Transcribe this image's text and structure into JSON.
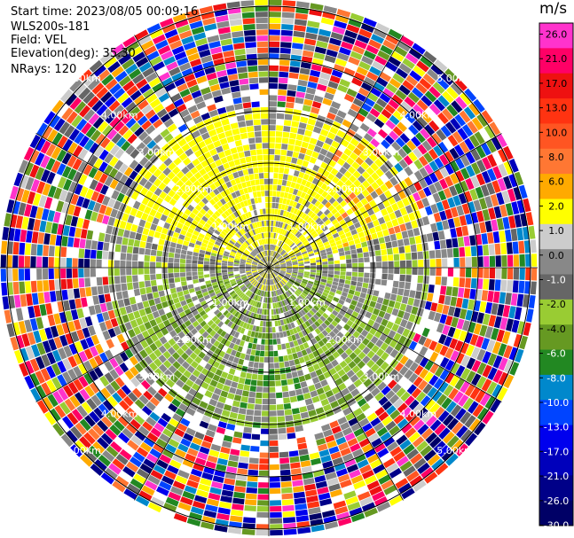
{
  "header": {
    "start_time": "Start time: 2023/08/05 00:09:16",
    "instrument": "WLS200s-181",
    "field": "Field: VEL",
    "elevation": "Elevation(deg): 35.30",
    "nrays": "NRays: 120"
  },
  "colorbar": {
    "unit": "m/s",
    "labels": [
      "26.0",
      "21.0",
      "17.0",
      "13.0",
      "10.0",
      "8.0",
      "6.0",
      "2.0",
      "1.0",
      "0.0",
      "-1.0",
      "-2.0",
      "-4.0",
      "-6.0",
      "-8.0",
      "-10.0",
      "-13.0",
      "-17.0",
      "-21.0",
      "-26.0",
      "-30.0"
    ],
    "colors": [
      "#ff33cc",
      "#ff0066",
      "#ee1111",
      "#ff3311",
      "#ff5522",
      "#ff7733",
      "#ffaa00",
      "#ffff00",
      "#cccccc",
      "#888888",
      "#666666",
      "#99cc33",
      "#669922",
      "#228822",
      "#0088cc",
      "#0044ff",
      "#0000ee",
      "#0000bb",
      "#000088",
      "#000066"
    ]
  },
  "chart_data": {
    "type": "heatmap",
    "title": "",
    "field": "VEL",
    "units": "m/s",
    "projection": "polar PPI",
    "nrays": 120,
    "elevation_deg": 35.3,
    "range_rings_km": [
      "1.00km",
      "2.00km",
      "3.00km",
      "4.00km",
      "5.00km"
    ],
    "range_ring_values_km": [
      1,
      2,
      3,
      4,
      5
    ],
    "vmin": -30.0,
    "vmax": 26.0,
    "dominant_pattern": "positive velocities (yellow/orange, 1-8 m/s) toward north, negative velocities (green, -2 to -6 m/s) toward south, noise (random colors) beyond about 3.5 km"
  }
}
